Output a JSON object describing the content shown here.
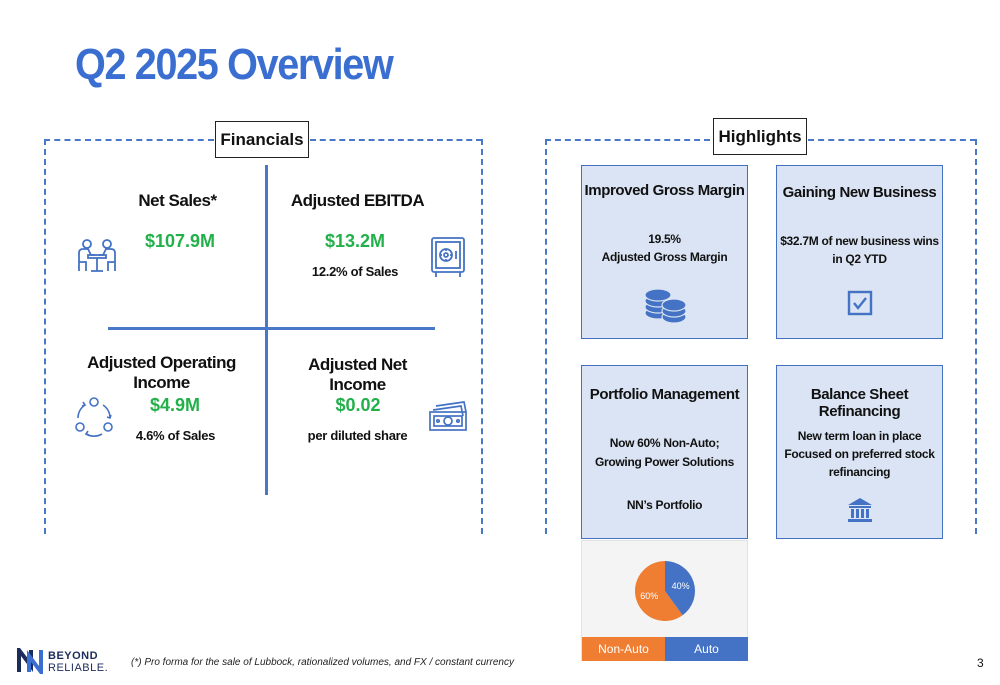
{
  "title": "Q2 2025 Overview",
  "financials": {
    "label": "Financials",
    "net_sales": {
      "heading": "Net Sales*",
      "value": "$107.9M",
      "icon": "people-meeting-icon"
    },
    "adjusted_ebitda": {
      "heading": "Adjusted EBITDA",
      "value": "$13.2M",
      "sub": "12.2% of Sales",
      "icon": "safe-icon"
    },
    "adjusted_operating_income": {
      "heading": "Adjusted Operating Income",
      "value": "$4.9M",
      "sub": "4.6% of Sales",
      "icon": "cycle-icon"
    },
    "adjusted_net_income": {
      "heading": "Adjusted Net Income",
      "value": "$0.02",
      "sub": "per diluted share",
      "icon": "cash-icon"
    }
  },
  "highlights": {
    "label": "Highlights",
    "gross_margin": {
      "title": "Improved Gross Margin",
      "line1": "19.5%",
      "line2": "Adjusted Gross Margin",
      "icon": "coins-icon"
    },
    "new_business": {
      "title": "Gaining New Business",
      "line1": "$32.7M of new business wins",
      "line2": "in Q2 YTD",
      "icon": "checkbox-icon"
    },
    "portfolio": {
      "title": "Portfolio Management",
      "line1": "Now 60% Non-Auto;",
      "line2": "Growing Power Solutions",
      "line3": "NN’s Portfolio"
    },
    "refinancing": {
      "title": "Balance Sheet  Refinancing",
      "line1": "New term loan in place",
      "line2": "Focused on preferred stock",
      "line3": "refinancing",
      "icon": "bank-icon"
    }
  },
  "chart_data": {
    "type": "pie",
    "categories": [
      "Non-Auto",
      "Auto"
    ],
    "values": [
      60,
      40
    ],
    "labels": [
      "60%",
      "40%"
    ],
    "colors": [
      "#ef7e32",
      "#4472c4"
    ],
    "legend": "bottom"
  },
  "footer": {
    "logo_line1": "BEYOND",
    "logo_line2": "RELIABLE.",
    "footnote": "(*) Pro forma for the sale of Lubbock, rationalized volumes, and FX / constant currency",
    "page_number": "3"
  },
  "colors": {
    "accent": "#3a6fd1",
    "positive": "#22b04a",
    "card_bg": "#dbe4f4"
  }
}
